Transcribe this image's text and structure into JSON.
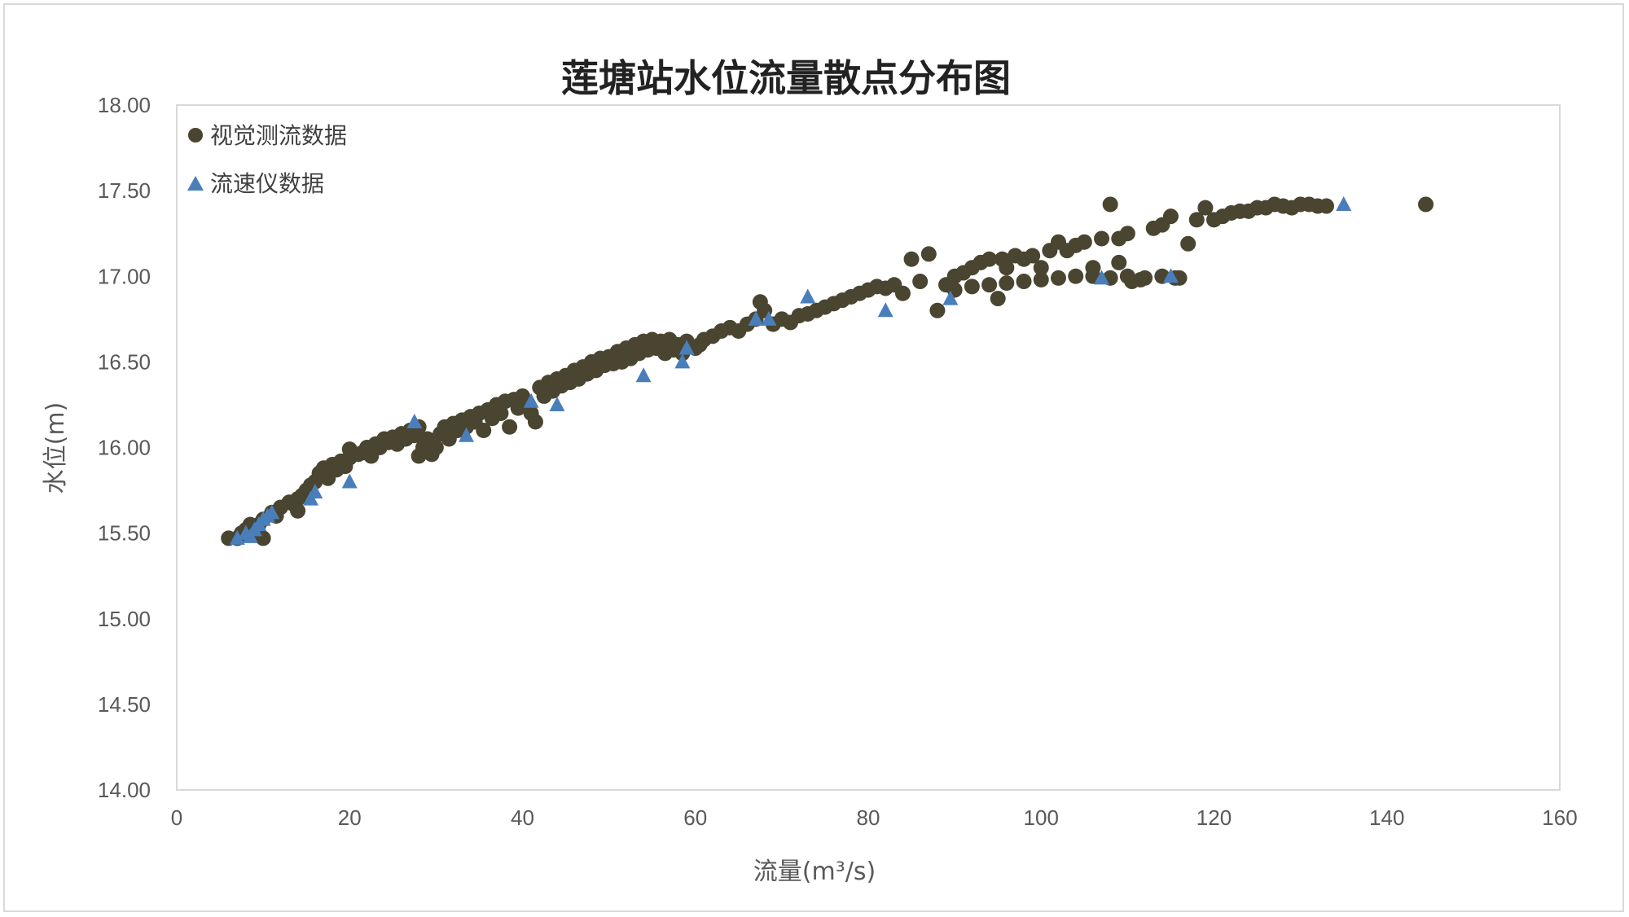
{
  "chart_data": {
    "type": "scatter",
    "title": "莲塘站水位流量散点分布图",
    "xlabel": "流量(m³/s)",
    "ylabel": "水位(m)",
    "xlim": [
      0,
      160
    ],
    "ylim": [
      14.0,
      18.0
    ],
    "x_ticks": [
      "0",
      "20",
      "40",
      "60",
      "80",
      "100",
      "120",
      "140",
      "160"
    ],
    "y_ticks": [
      "14.00",
      "14.50",
      "15.00",
      "15.50",
      "16.00",
      "16.50",
      "17.00",
      "17.50",
      "18.00"
    ],
    "grid": false,
    "legend_position": "top-left",
    "series": [
      {
        "name": "视觉测流数据",
        "marker": "circle",
        "color": "#4a4530",
        "points": [
          [
            6,
            15.47
          ],
          [
            7,
            15.47
          ],
          [
            7.5,
            15.5
          ],
          [
            8,
            15.52
          ],
          [
            8.5,
            15.55
          ],
          [
            9,
            15.5
          ],
          [
            9.5,
            15.55
          ],
          [
            10,
            15.58
          ],
          [
            10,
            15.47
          ],
          [
            11,
            15.62
          ],
          [
            11.5,
            15.6
          ],
          [
            12,
            15.65
          ],
          [
            13,
            15.68
          ],
          [
            13.5,
            15.67
          ],
          [
            14,
            15.7
          ],
          [
            14.5,
            15.72
          ],
          [
            14,
            15.63
          ],
          [
            15,
            15.75
          ],
          [
            15.5,
            15.78
          ],
          [
            16,
            15.8
          ],
          [
            16.5,
            15.85
          ],
          [
            17,
            15.88
          ],
          [
            17.5,
            15.82
          ],
          [
            18,
            15.9
          ],
          [
            18.5,
            15.87
          ],
          [
            19,
            15.92
          ],
          [
            19.5,
            15.89
          ],
          [
            20,
            15.94
          ],
          [
            20,
            15.99
          ],
          [
            21,
            15.96
          ],
          [
            21.5,
            15.97
          ],
          [
            22,
            16.0
          ],
          [
            22.5,
            15.95
          ],
          [
            23,
            16.02
          ],
          [
            23.5,
            16.0
          ],
          [
            24,
            16.05
          ],
          [
            24.5,
            16.03
          ],
          [
            25,
            16.06
          ],
          [
            25.5,
            16.02
          ],
          [
            26,
            16.08
          ],
          [
            26.5,
            16.05
          ],
          [
            27,
            16.1
          ],
          [
            27.5,
            16.07
          ],
          [
            28,
            16.12
          ],
          [
            28,
            15.95
          ],
          [
            28.5,
            16.0
          ],
          [
            29,
            16.05
          ],
          [
            29.5,
            15.96
          ],
          [
            30,
            16.0
          ],
          [
            30.5,
            16.08
          ],
          [
            31,
            16.12
          ],
          [
            31.5,
            16.05
          ],
          [
            32,
            16.14
          ],
          [
            32.5,
            16.1
          ],
          [
            33,
            16.16
          ],
          [
            33.5,
            16.12
          ],
          [
            34,
            16.18
          ],
          [
            34.5,
            16.15
          ],
          [
            35,
            16.2
          ],
          [
            35.5,
            16.1
          ],
          [
            36,
            16.22
          ],
          [
            36.5,
            16.17
          ],
          [
            37,
            16.25
          ],
          [
            37.5,
            16.2
          ],
          [
            38,
            16.27
          ],
          [
            38.5,
            16.12
          ],
          [
            39,
            16.28
          ],
          [
            39.5,
            16.23
          ],
          [
            40,
            16.3
          ],
          [
            40.5,
            16.25
          ],
          [
            41,
            16.2
          ],
          [
            41.5,
            16.15
          ],
          [
            42,
            16.35
          ],
          [
            42.5,
            16.3
          ],
          [
            43,
            16.38
          ],
          [
            43.5,
            16.33
          ],
          [
            44,
            16.4
          ],
          [
            44.5,
            16.36
          ],
          [
            45,
            16.42
          ],
          [
            45.5,
            16.38
          ],
          [
            46,
            16.45
          ],
          [
            46.5,
            16.4
          ],
          [
            47,
            16.47
          ],
          [
            47.5,
            16.43
          ],
          [
            48,
            16.5
          ],
          [
            48.5,
            16.45
          ],
          [
            49,
            16.52
          ],
          [
            49.5,
            16.48
          ],
          [
            50,
            16.53
          ],
          [
            50.5,
            16.49
          ],
          [
            51,
            16.56
          ],
          [
            51.5,
            16.5
          ],
          [
            52,
            16.58
          ],
          [
            52.5,
            16.52
          ],
          [
            53,
            16.6
          ],
          [
            53.5,
            16.55
          ],
          [
            54,
            16.62
          ],
          [
            54.5,
            16.57
          ],
          [
            55,
            16.63
          ],
          [
            55.5,
            16.58
          ],
          [
            56,
            16.62
          ],
          [
            56.5,
            16.55
          ],
          [
            57,
            16.63
          ],
          [
            57.5,
            16.57
          ],
          [
            58,
            16.6
          ],
          [
            58.5,
            16.55
          ],
          [
            59,
            16.62
          ],
          [
            60,
            16.58
          ],
          [
            60.5,
            16.6
          ],
          [
            61,
            16.63
          ],
          [
            62,
            16.65
          ],
          [
            63,
            16.68
          ],
          [
            64,
            16.7
          ],
          [
            65,
            16.68
          ],
          [
            66,
            16.72
          ],
          [
            67,
            16.75
          ],
          [
            67.5,
            16.85
          ],
          [
            68,
            16.8
          ],
          [
            69,
            16.72
          ],
          [
            70,
            16.75
          ],
          [
            71,
            16.73
          ],
          [
            72,
            16.77
          ],
          [
            73,
            16.78
          ],
          [
            74,
            16.8
          ],
          [
            75,
            16.82
          ],
          [
            76,
            16.84
          ],
          [
            77,
            16.86
          ],
          [
            78,
            16.88
          ],
          [
            79,
            16.9
          ],
          [
            80,
            16.92
          ],
          [
            81,
            16.94
          ],
          [
            82,
            16.93
          ],
          [
            83,
            16.95
          ],
          [
            84,
            16.9
          ],
          [
            85,
            17.1
          ],
          [
            86,
            16.97
          ],
          [
            87,
            17.13
          ],
          [
            88,
            16.8
          ],
          [
            89,
            16.95
          ],
          [
            90,
            17.0
          ],
          [
            91,
            17.02
          ],
          [
            92,
            17.05
          ],
          [
            93,
            17.08
          ],
          [
            94,
            17.1
          ],
          [
            95,
            16.87
          ],
          [
            95.5,
            17.1
          ],
          [
            96,
            17.05
          ],
          [
            97,
            17.12
          ],
          [
            98,
            17.1
          ],
          [
            99,
            17.12
          ],
          [
            100,
            17.05
          ],
          [
            101,
            17.15
          ],
          [
            102,
            17.2
          ],
          [
            103,
            17.15
          ],
          [
            104,
            17.18
          ],
          [
            105,
            17.2
          ],
          [
            106,
            17.05
          ],
          [
            107,
            17.22
          ],
          [
            108,
            17.42
          ],
          [
            109,
            17.22
          ],
          [
            109,
            17.08
          ],
          [
            110,
            17.25
          ],
          [
            110.5,
            16.97
          ],
          [
            111.5,
            16.98
          ],
          [
            113,
            17.28
          ],
          [
            114,
            17.3
          ],
          [
            115,
            17.35
          ],
          [
            116,
            16.99
          ],
          [
            117,
            17.19
          ],
          [
            118,
            17.33
          ],
          [
            119,
            17.4
          ],
          [
            120,
            17.33
          ],
          [
            121,
            17.35
          ],
          [
            122,
            17.37
          ],
          [
            123,
            17.38
          ],
          [
            124,
            17.38
          ],
          [
            125,
            17.4
          ],
          [
            126,
            17.4
          ],
          [
            127,
            17.42
          ],
          [
            128,
            17.41
          ],
          [
            129,
            17.4
          ],
          [
            130,
            17.42
          ],
          [
            131,
            17.42
          ],
          [
            132,
            17.41
          ],
          [
            133,
            17.41
          ],
          [
            144.5,
            17.42
          ],
          [
            90,
            16.92
          ],
          [
            92,
            16.94
          ],
          [
            94,
            16.95
          ],
          [
            96,
            16.96
          ],
          [
            98,
            16.97
          ],
          [
            100,
            16.98
          ],
          [
            102,
            16.99
          ],
          [
            104,
            17.0
          ],
          [
            106,
            17.0
          ],
          [
            108,
            16.99
          ],
          [
            110,
            17.0
          ],
          [
            112,
            16.99
          ],
          [
            114,
            17.0
          ],
          [
            115.5,
            16.99
          ]
        ]
      },
      {
        "name": "流速仪数据",
        "marker": "triangle",
        "color": "#4a7ebb",
        "points": [
          [
            7,
            15.47
          ],
          [
            8,
            15.5
          ],
          [
            8.5,
            15.48
          ],
          [
            9,
            15.52
          ],
          [
            9.5,
            15.55
          ],
          [
            10,
            15.58
          ],
          [
            10.5,
            15.6
          ],
          [
            11,
            15.62
          ],
          [
            15.5,
            15.7
          ],
          [
            16,
            15.74
          ],
          [
            20,
            15.8
          ],
          [
            27.5,
            16.15
          ],
          [
            33.5,
            16.07
          ],
          [
            41,
            16.27
          ],
          [
            44,
            16.25
          ],
          [
            54,
            16.42
          ],
          [
            58.5,
            16.5
          ],
          [
            59,
            16.58
          ],
          [
            67,
            16.75
          ],
          [
            68.5,
            16.75
          ],
          [
            73,
            16.88
          ],
          [
            82,
            16.8
          ],
          [
            89.5,
            16.87
          ],
          [
            107,
            16.99
          ],
          [
            115,
            17.0
          ],
          [
            135,
            17.42
          ]
        ]
      }
    ]
  }
}
